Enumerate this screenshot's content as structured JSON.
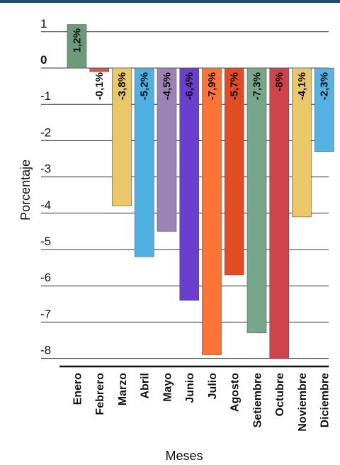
{
  "chart_data": {
    "type": "bar",
    "xlabel": "Meses",
    "ylabel": "Porcentaje",
    "ylim": [
      -8.2,
      1.3
    ],
    "yticks": [
      1,
      0,
      -1,
      -2,
      -3,
      -4,
      -5,
      -6,
      -7,
      -8
    ],
    "grid": true,
    "categories": [
      "Enero",
      "Febrero",
      "Marzo",
      "Abril",
      "Mayo",
      "Junio",
      "Julio",
      "Agosto",
      "Setiembre",
      "Octubre",
      "Noviembre",
      "Diciembre"
    ],
    "values": [
      1.2,
      -0.1,
      -3.8,
      -5.2,
      -4.5,
      -6.4,
      -7.9,
      -5.7,
      -7.3,
      -8,
      -4.1,
      -2.3
    ],
    "data_labels": [
      "1,2%",
      "-0,1%",
      "-3,8%",
      "-5,2%",
      "-4,5%",
      "-6,4%",
      "-7,9%",
      "-5,7%",
      "-7,3%",
      "-8%",
      "-4,1%",
      "-2,3%"
    ],
    "colors": [
      "#6b9b7a",
      "#d9534f",
      "#eac86a",
      "#4fb0e3",
      "#9b83b5",
      "#6a3fcf",
      "#fb7436",
      "#e24b24",
      "#76a78a",
      "#d0434c",
      "#eac86a",
      "#56b2e2"
    ]
  }
}
